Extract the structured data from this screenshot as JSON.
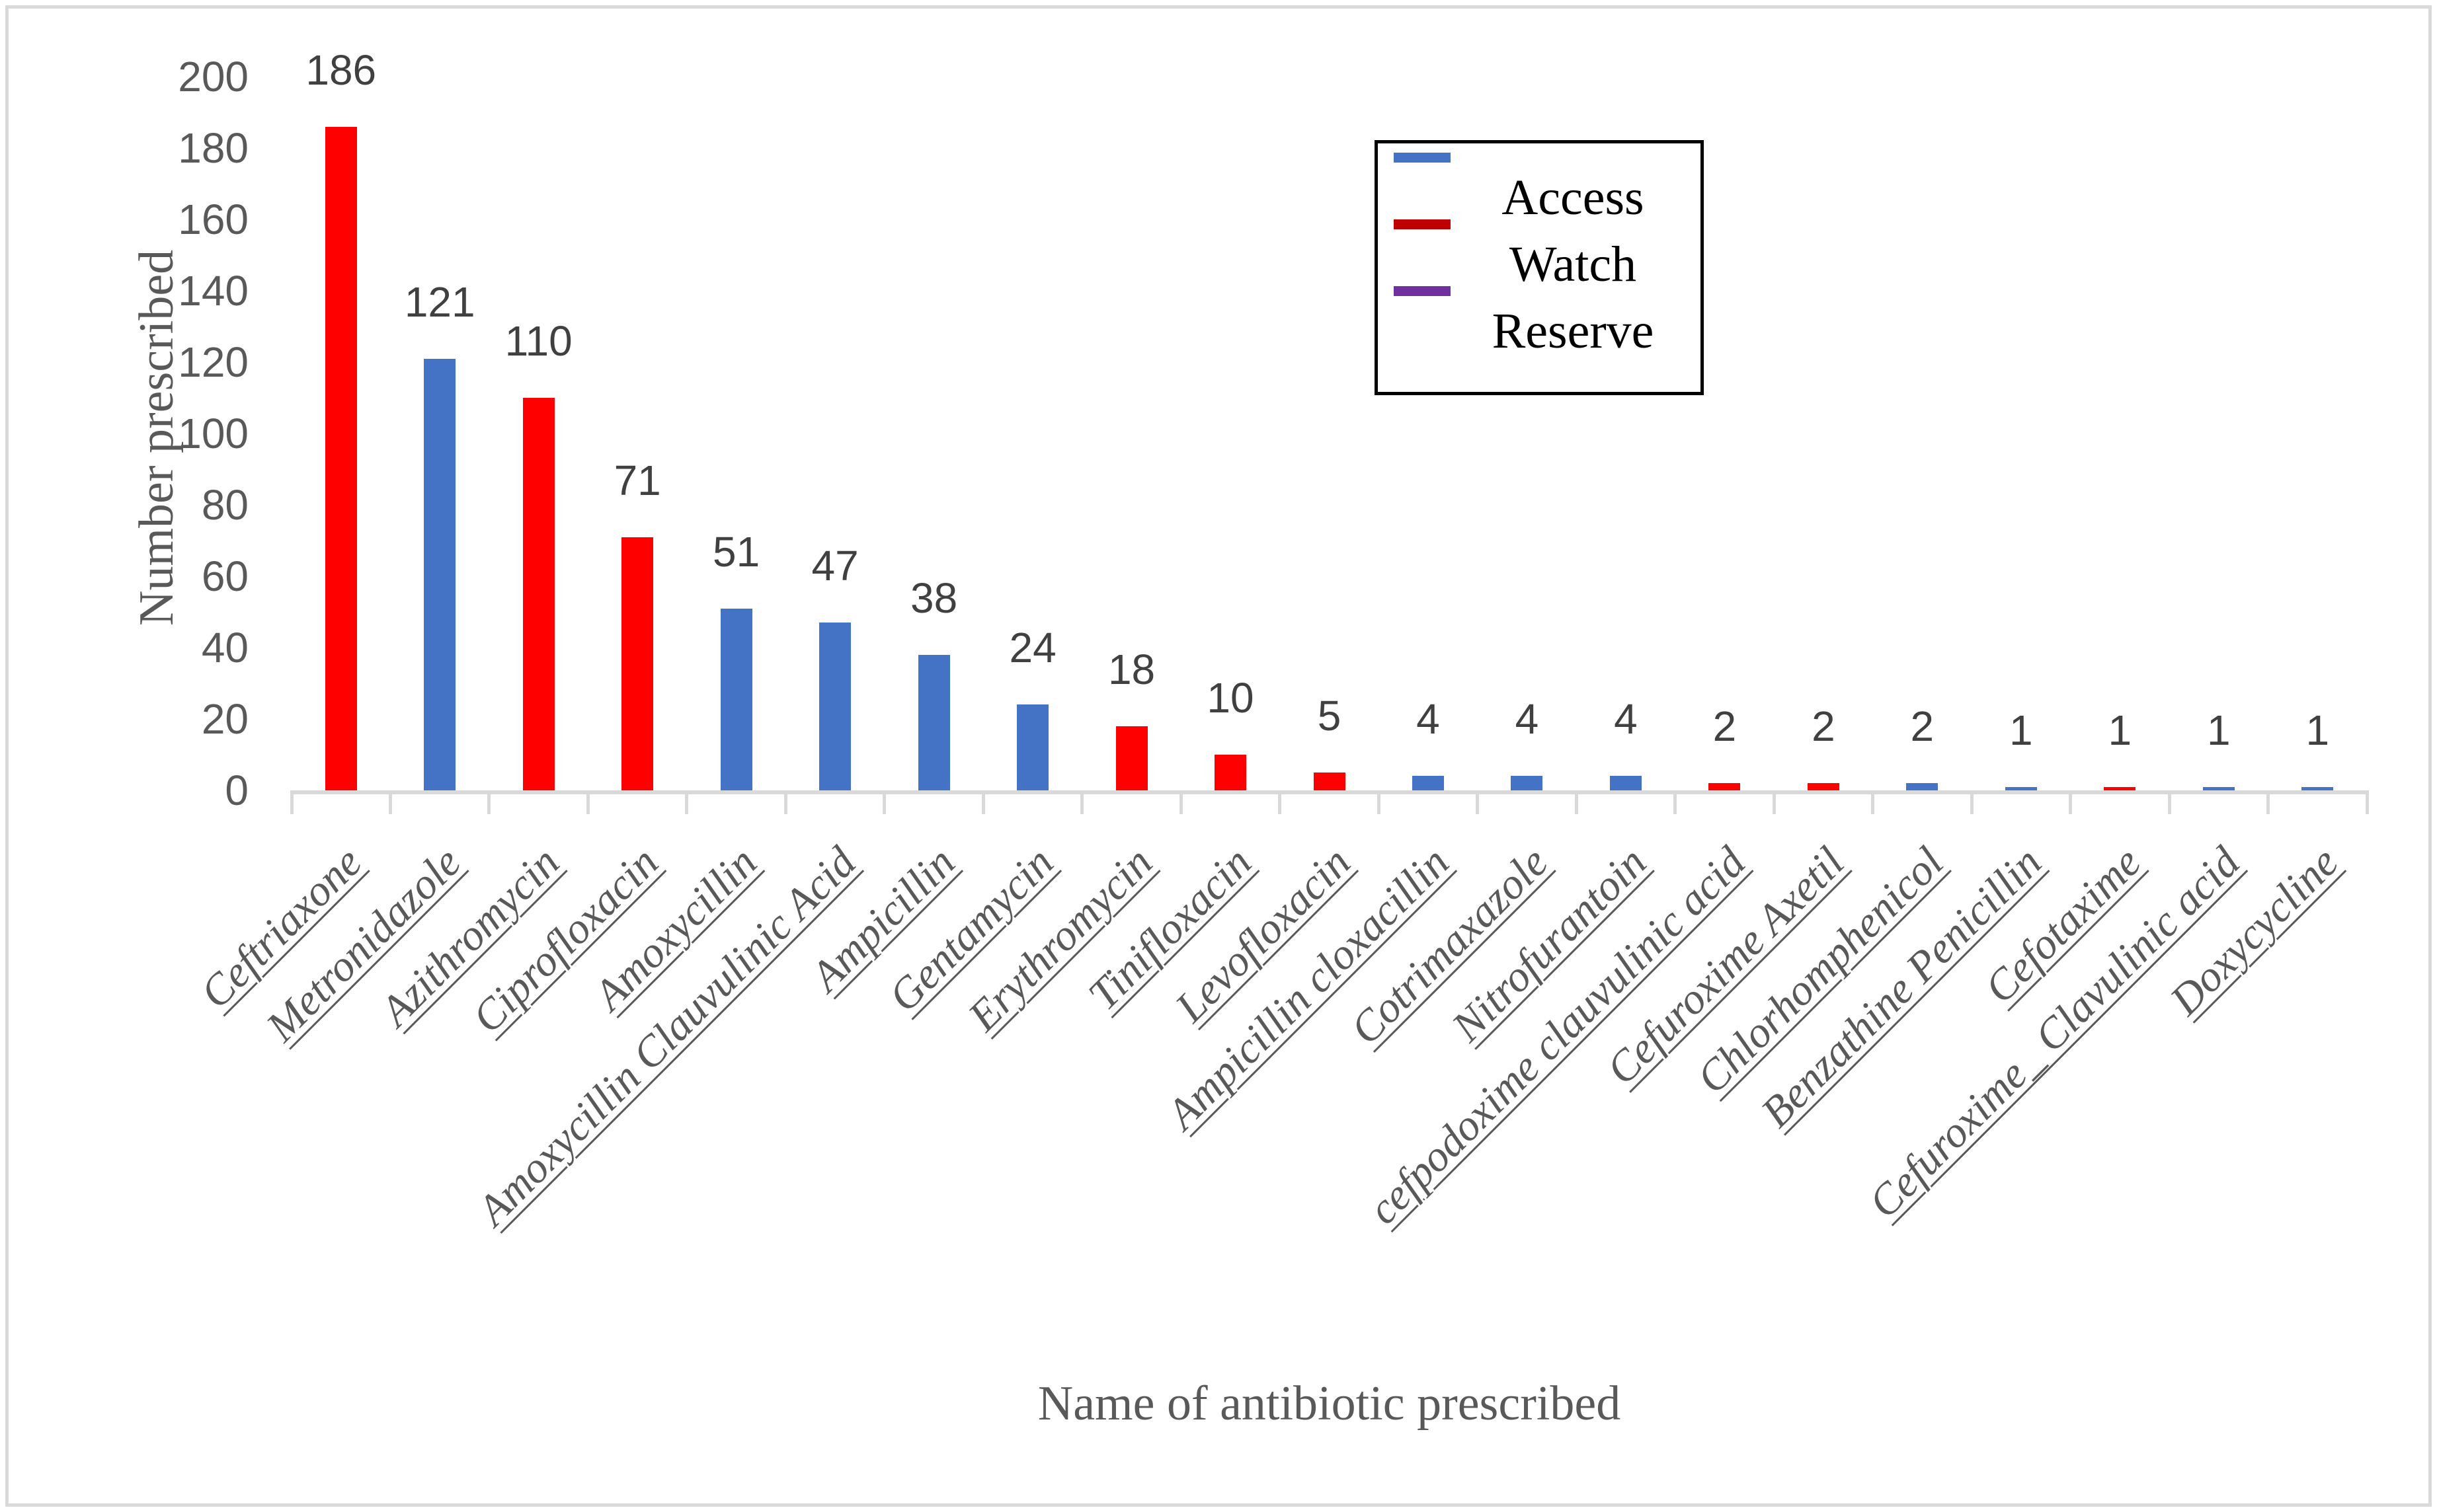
{
  "figure": {
    "background": "#FFFFFF",
    "border_color": "#D9D9D9",
    "axis_color": "#D9D9D9",
    "text_color": "#595959"
  },
  "legend": {
    "position": "top-right",
    "items": [
      {
        "label": "Access",
        "color": "#4472C4"
      },
      {
        "label": "Watch",
        "color": "#C00000"
      },
      {
        "label": "Reserve",
        "color": "#7030A0"
      }
    ]
  },
  "chart_data": {
    "type": "bar",
    "title": "",
    "xlabel": "Name of antibiotic prescribed",
    "ylabel": "Number prescribed",
    "ylim": [
      0,
      200
    ],
    "yticks": [
      0,
      20,
      40,
      60,
      80,
      100,
      120,
      140,
      160,
      180,
      200
    ],
    "grid": false,
    "data_labels_shown": true,
    "categories": [
      "Ceftriaxone",
      "Metronidazole",
      "Azithromycin",
      "Ciprofloxacin",
      "Amoxycillin",
      "Amoxycillin Clauvulinic Acid",
      "Ampicillin",
      "Gentamycin",
      "Erythromycin",
      "Tinifloxacin",
      "Levofloxacin",
      "Ampicillin cloxacillin",
      "Cotrimaxazole",
      "Nitrofurantoin",
      "cefpodoxime clauvulinic acid",
      "Cefuroxime Axetil",
      "Chlorhomphenicol",
      "Benzathine Penicillin",
      "Cefotaxime",
      "Cefuroxime_ Clavulinic acid",
      "Doxycycline"
    ],
    "values": [
      186,
      121,
      110,
      71,
      51,
      47,
      38,
      24,
      18,
      10,
      5,
      4,
      4,
      4,
      2,
      2,
      2,
      1,
      1,
      1,
      1
    ],
    "series_of_bar": [
      "Watch",
      "Access",
      "Watch",
      "Watch",
      "Access",
      "Access",
      "Access",
      "Access",
      "Watch",
      "Watch",
      "Watch",
      "Access",
      "Access",
      "Access",
      "Watch",
      "Watch",
      "Access",
      "Access",
      "Watch",
      "Access",
      "Access"
    ],
    "series_bar_colors": {
      "Access": "#4472C4",
      "Watch": "#FF0000",
      "Reserve": "#7030A0"
    }
  }
}
